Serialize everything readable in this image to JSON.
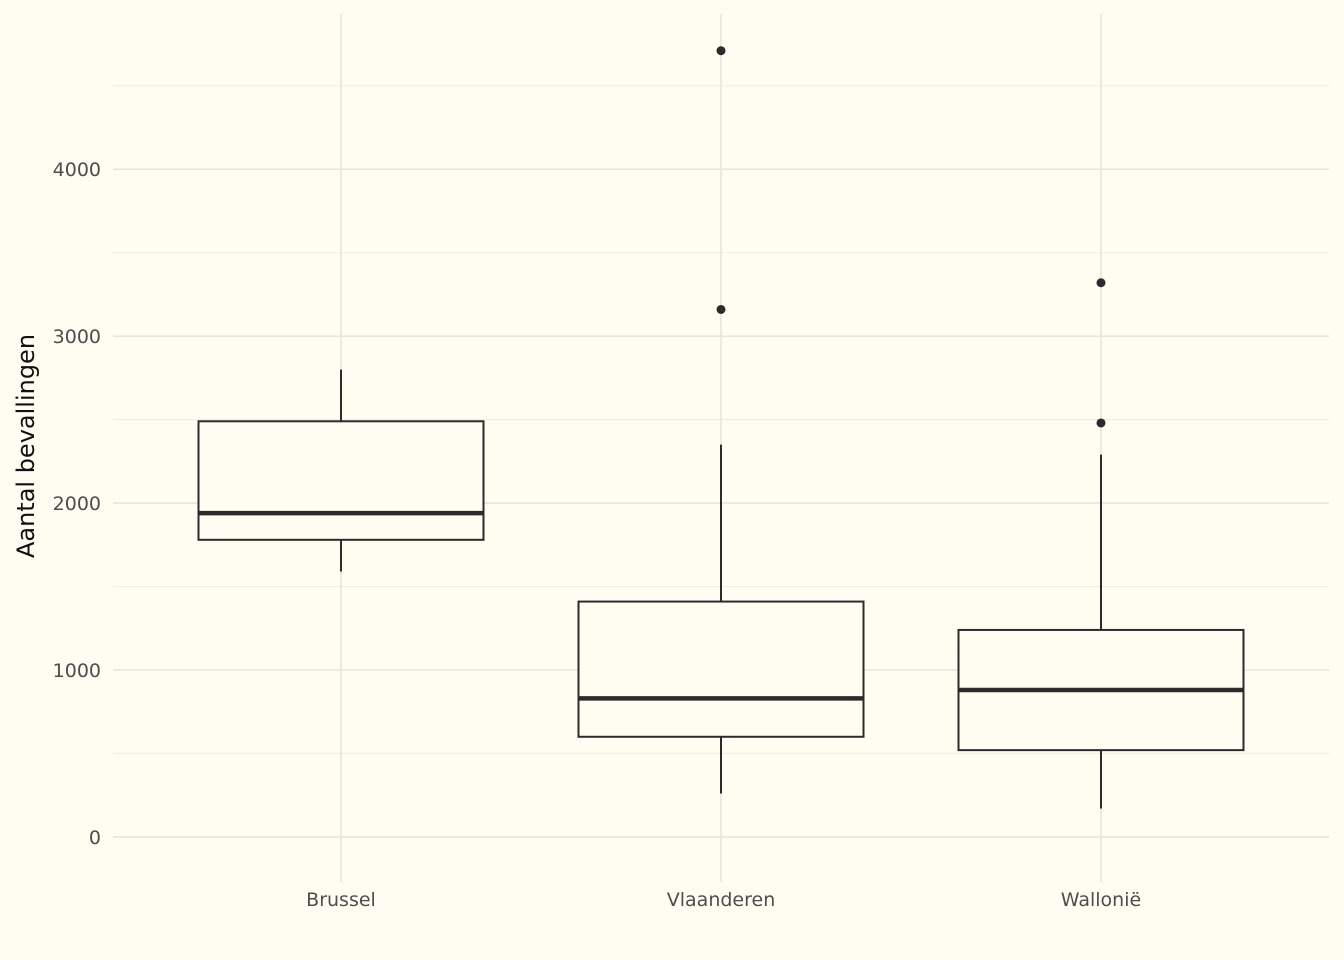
{
  "chart_data": {
    "type": "boxplot",
    "title": "",
    "xlabel": "",
    "ylabel": "Aantal bevallingen",
    "ylim": [
      -270,
      4930
    ],
    "y_ticks": [
      0,
      1000,
      2000,
      3000,
      4000
    ],
    "grid": true,
    "legend": "none",
    "categories": [
      "Brussel",
      "Vlaanderen",
      "Wallonië"
    ],
    "boxes": [
      {
        "category": "Brussel",
        "whisker_low": 1590,
        "q1": 1780,
        "median": 1940,
        "q3": 2490,
        "whisker_high": 2800,
        "outliers": []
      },
      {
        "category": "Vlaanderen",
        "whisker_low": 260,
        "q1": 600,
        "median": 830,
        "q3": 1410,
        "whisker_high": 2350,
        "outliers": [
          3160,
          4710
        ]
      },
      {
        "category": "Wallonië",
        "whisker_low": 170,
        "q1": 520,
        "median": 880,
        "q3": 1240,
        "whisker_high": 2290,
        "outliers": [
          2480,
          3320
        ]
      }
    ],
    "colors": {
      "background": "#fffdf2",
      "grid_major": "#e6e5dd",
      "grid_minor": "#f0efe6",
      "box_stroke": "#2b2b2b",
      "tick_text": "#4d4d4d",
      "axis_title": "#111111"
    }
  }
}
